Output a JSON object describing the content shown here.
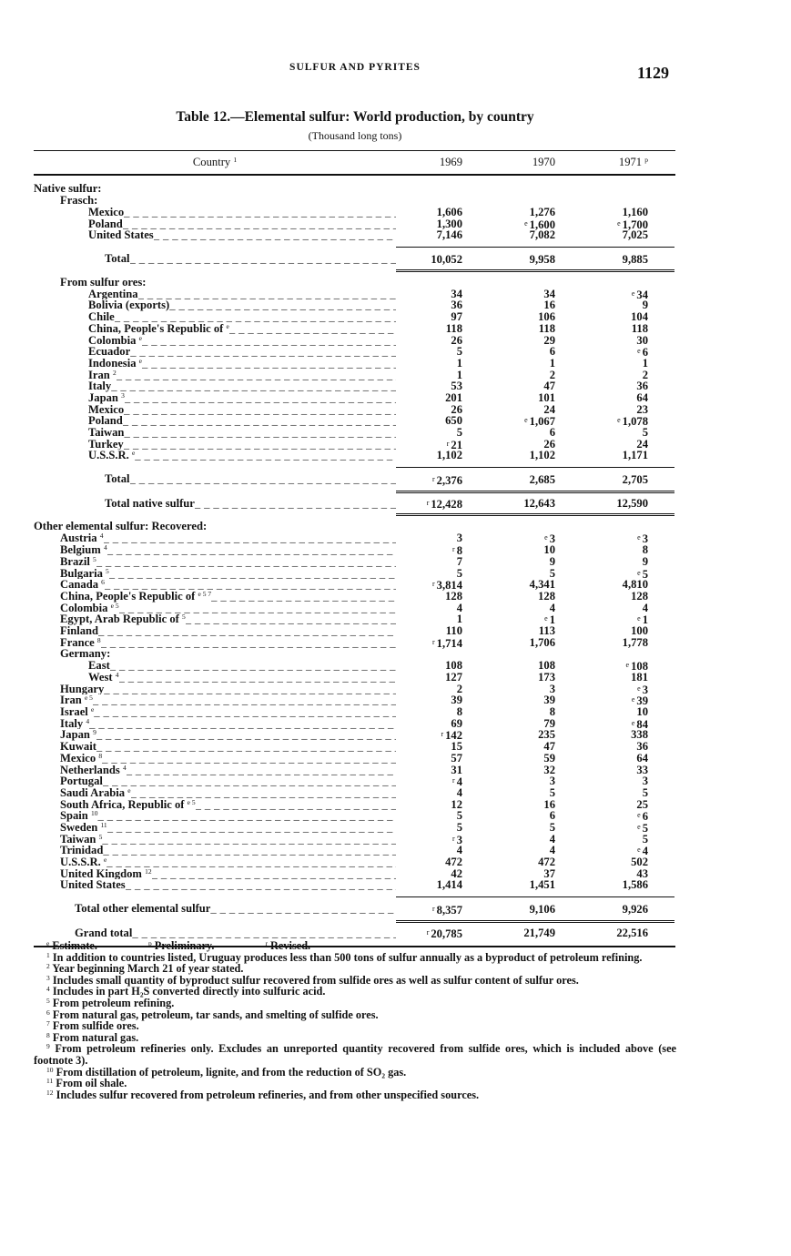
{
  "running_head": "SULFUR AND PYRITES",
  "page_number": "1129",
  "title": "Table 12.—Elemental sulfur: World production, by country",
  "subtitle": "(Thousand long tons)",
  "table": {
    "headers": [
      {
        "text": "Country",
        "sup": "1"
      },
      {
        "text": "1969",
        "sup": ""
      },
      {
        "text": "1970",
        "sup": ""
      },
      {
        "text": "1971",
        "sup": "p"
      }
    ],
    "rows": [
      {
        "kind": "section",
        "level": 0,
        "label": "Native sulfur:"
      },
      {
        "kind": "section",
        "level": 1,
        "label": "Frasch:"
      },
      {
        "kind": "row",
        "level": 2,
        "label": "Mexico",
        "sup": "",
        "values": [
          "1,606",
          "1,276",
          "1,160"
        ]
      },
      {
        "kind": "row",
        "level": 2,
        "label": "Poland",
        "sup": "",
        "values": [
          "1,300",
          "e 1,600",
          "e 1,700"
        ]
      },
      {
        "kind": "row",
        "level": 2,
        "label": "United States",
        "sup": "",
        "values": [
          "7,146",
          "7,082",
          "7,025"
        ]
      },
      {
        "kind": "subtotal",
        "level": 3,
        "label": "Total",
        "sup": "",
        "values": [
          "10,052",
          "9,958",
          "9,885"
        ]
      },
      {
        "kind": "section",
        "level": 1,
        "label": "From sulfur ores:"
      },
      {
        "kind": "row",
        "level": 2,
        "label": "Argentina",
        "sup": "",
        "values": [
          "34",
          "34",
          "e 34"
        ]
      },
      {
        "kind": "row",
        "level": 2,
        "label": "Bolivia (exports)",
        "sup": "",
        "values": [
          "36",
          "16",
          "9"
        ]
      },
      {
        "kind": "row",
        "level": 2,
        "label": "Chile",
        "sup": "",
        "values": [
          "97",
          "106",
          "104"
        ]
      },
      {
        "kind": "row",
        "level": 2,
        "label": "China, People's Republic of",
        "sup": "e",
        "values": [
          "118",
          "118",
          "118"
        ]
      },
      {
        "kind": "row",
        "level": 2,
        "label": "Colombia",
        "sup": "e",
        "values": [
          "26",
          "29",
          "30"
        ]
      },
      {
        "kind": "row",
        "level": 2,
        "label": "Ecuador",
        "sup": "",
        "values": [
          "5",
          "6",
          "e 6"
        ]
      },
      {
        "kind": "row",
        "level": 2,
        "label": "Indonesia",
        "sup": "e",
        "values": [
          "1",
          "1",
          "1"
        ]
      },
      {
        "kind": "row",
        "level": 2,
        "label": "Iran",
        "sup": "2",
        "values": [
          "1",
          "2",
          "2"
        ]
      },
      {
        "kind": "row",
        "level": 2,
        "label": "Italy",
        "sup": "",
        "values": [
          "53",
          "47",
          "36"
        ]
      },
      {
        "kind": "row",
        "level": 2,
        "label": "Japan",
        "sup": "3",
        "values": [
          "201",
          "101",
          "64"
        ]
      },
      {
        "kind": "row",
        "level": 2,
        "label": "Mexico",
        "sup": "",
        "values": [
          "26",
          "24",
          "23"
        ]
      },
      {
        "kind": "row",
        "level": 2,
        "label": "Poland",
        "sup": "",
        "values": [
          "650",
          "e 1,067",
          "e 1,078"
        ]
      },
      {
        "kind": "row",
        "level": 2,
        "label": "Taiwan",
        "sup": "",
        "values": [
          "5",
          "6",
          "5"
        ]
      },
      {
        "kind": "row",
        "level": 2,
        "label": "Turkey",
        "sup": "",
        "values": [
          "r 21",
          "26",
          "24"
        ]
      },
      {
        "kind": "row",
        "level": 2,
        "label": "U.S.S.R.",
        "sup": "e",
        "values": [
          "1,102",
          "1,102",
          "1,171"
        ]
      },
      {
        "kind": "subtotal",
        "level": 3,
        "label": "Total",
        "sup": "",
        "values": [
          "r 2,376",
          "2,685",
          "2,705"
        ]
      },
      {
        "kind": "subtotal-cont",
        "level": 3,
        "label": "Total native sulfur",
        "sup": "",
        "values": [
          "r 12,428",
          "12,643",
          "12,590"
        ]
      },
      {
        "kind": "section",
        "level": 0,
        "label": "Other elemental sulfur: Recovered:"
      },
      {
        "kind": "row",
        "level": 1,
        "label": "Austria",
        "sup": "4",
        "values": [
          "3",
          "e 3",
          "e 3"
        ]
      },
      {
        "kind": "row",
        "level": 1,
        "label": "Belgium",
        "sup": "4",
        "values": [
          "r 8",
          "10",
          "8"
        ]
      },
      {
        "kind": "row",
        "level": 1,
        "label": "Brazil",
        "sup": "5",
        "values": [
          "7",
          "9",
          "9"
        ]
      },
      {
        "kind": "row",
        "level": 1,
        "label": "Bulgaria",
        "sup": "5",
        "values": [
          "5",
          "5",
          "e 5"
        ]
      },
      {
        "kind": "row",
        "level": 1,
        "label": "Canada",
        "sup": "6",
        "values": [
          "r 3,814",
          "4,341",
          "4,810"
        ]
      },
      {
        "kind": "row",
        "level": 1,
        "label": "China, People's Republic of",
        "sup": "e 5 7",
        "values": [
          "128",
          "128",
          "128"
        ]
      },
      {
        "kind": "row",
        "level": 1,
        "label": "Colombia",
        "sup": "e 5",
        "values": [
          "4",
          "4",
          "4"
        ]
      },
      {
        "kind": "row",
        "level": 1,
        "label": "Egypt, Arab Republic of",
        "sup": "5",
        "values": [
          "1",
          "e 1",
          "e 1"
        ]
      },
      {
        "kind": "row",
        "level": 1,
        "label": "Finland",
        "sup": "",
        "values": [
          "110",
          "113",
          "100"
        ]
      },
      {
        "kind": "row",
        "level": 1,
        "label": "France",
        "sup": "8",
        "values": [
          "r 1,714",
          "1,706",
          "1,778"
        ]
      },
      {
        "kind": "section",
        "level": 1,
        "label": "Germany:"
      },
      {
        "kind": "row",
        "level": 2,
        "label": "East",
        "sup": "",
        "values": [
          "108",
          "108",
          "e 108"
        ]
      },
      {
        "kind": "row",
        "level": 2,
        "label": "West",
        "sup": "4",
        "values": [
          "127",
          "173",
          "181"
        ]
      },
      {
        "kind": "row",
        "level": 1,
        "label": "Hungary",
        "sup": "",
        "values": [
          "2",
          "3",
          "e 3"
        ]
      },
      {
        "kind": "row",
        "level": 1,
        "label": "Iran",
        "sup": "e 5",
        "values": [
          "39",
          "39",
          "e 39"
        ]
      },
      {
        "kind": "row",
        "level": 1,
        "label": "Israel",
        "sup": "e",
        "values": [
          "8",
          "8",
          "10"
        ]
      },
      {
        "kind": "row",
        "level": 1,
        "label": "Italy",
        "sup": "4",
        "values": [
          "69",
          "79",
          "e 84"
        ]
      },
      {
        "kind": "row",
        "level": 1,
        "label": "Japan",
        "sup": "9",
        "values": [
          "r 142",
          "235",
          "338"
        ]
      },
      {
        "kind": "row",
        "level": 1,
        "label": "Kuwait",
        "sup": "",
        "values": [
          "15",
          "47",
          "36"
        ]
      },
      {
        "kind": "row",
        "level": 1,
        "label": "Mexico",
        "sup": "8",
        "values": [
          "57",
          "59",
          "64"
        ]
      },
      {
        "kind": "row",
        "level": 1,
        "label": "Netherlands",
        "sup": "4",
        "values": [
          "31",
          "32",
          "33"
        ]
      },
      {
        "kind": "row",
        "level": 1,
        "label": "Portugal",
        "sup": "",
        "values": [
          "r 4",
          "3",
          "3"
        ]
      },
      {
        "kind": "row",
        "level": 1,
        "label": "Saudi Arabia",
        "sup": "e",
        "values": [
          "4",
          "5",
          "5"
        ]
      },
      {
        "kind": "row",
        "level": 1,
        "label": "South Africa, Republic of",
        "sup": "e 5",
        "values": [
          "12",
          "16",
          "25"
        ]
      },
      {
        "kind": "row",
        "level": 1,
        "label": "Spain",
        "sup": "10",
        "values": [
          "5",
          "6",
          "e 6"
        ]
      },
      {
        "kind": "row",
        "level": 1,
        "label": "Sweden",
        "sup": "11",
        "values": [
          "5",
          "5",
          "e 5"
        ]
      },
      {
        "kind": "row",
        "level": 1,
        "label": "Taiwan",
        "sup": "5",
        "values": [
          "r 3",
          "4",
          "5"
        ]
      },
      {
        "kind": "row",
        "level": 1,
        "label": "Trinidad",
        "sup": "",
        "values": [
          "4",
          "4",
          "e 4"
        ]
      },
      {
        "kind": "row",
        "level": 1,
        "label": "U.S.S.R.",
        "sup": "e",
        "values": [
          "472",
          "472",
          "502"
        ]
      },
      {
        "kind": "row",
        "level": 1,
        "label": "United Kingdom",
        "sup": "12",
        "values": [
          "42",
          "37",
          "43"
        ]
      },
      {
        "kind": "row",
        "level": 1,
        "label": "United States",
        "sup": "",
        "values": [
          "1,414",
          "1,451",
          "1,586"
        ]
      },
      {
        "kind": "total",
        "level": 4,
        "label": "Total other elemental sulfur",
        "sup": "",
        "values": [
          "r 8,357",
          "9,106",
          "9,926"
        ]
      },
      {
        "kind": "grand",
        "level": 4,
        "label": "Grand total",
        "sup": "",
        "values": [
          "r 20,785",
          "21,749",
          "22,516"
        ]
      }
    ]
  },
  "footnotes": {
    "legend": [
      {
        "mark": "e",
        "text": "Estimate."
      },
      {
        "mark": "p",
        "text": "Preliminary."
      },
      {
        "mark": "r",
        "text": "Revised."
      }
    ],
    "notes": [
      {
        "mark": "1",
        "text": "In addition to countries listed, Uruguay produces less than 500 tons of sulfur annually as a byproduct of petroleum refining."
      },
      {
        "mark": "2",
        "text": "Year beginning March 21 of year stated."
      },
      {
        "mark": "3",
        "text": "Includes small quantity of byproduct sulfur recovered from sulfide ores as well as sulfur content of sulfur ores."
      },
      {
        "mark": "4",
        "text": "Includes in part H₂S converted directly into sulfuric acid."
      },
      {
        "mark": "5",
        "text": "From petroleum refining."
      },
      {
        "mark": "6",
        "text": "From natural gas, petroleum, tar sands, and smelting of sulfide ores."
      },
      {
        "mark": "7",
        "text": "From sulfide ores."
      },
      {
        "mark": "8",
        "text": "From natural gas."
      },
      {
        "mark": "9",
        "text": "From petroleum refineries only. Excludes an unreported quantity recovered from sulfide ores, which is included above (see footnote 3)."
      },
      {
        "mark": "10",
        "text": "From distillation of petroleum, lignite, and from the reduction of SO₂ gas."
      },
      {
        "mark": "11",
        "text": "From oil shale."
      },
      {
        "mark": "12",
        "text": "Includes sulfur recovered from petroleum refineries, and from other unspecified sources."
      }
    ]
  }
}
